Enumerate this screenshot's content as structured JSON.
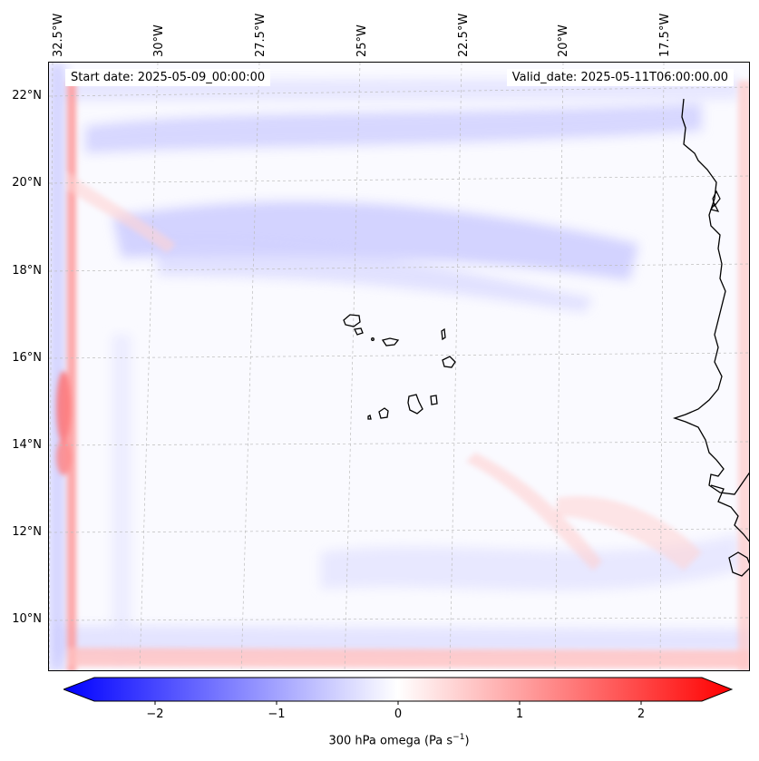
{
  "header": {
    "start_date": "Start date: 2025-05-09_00:00:00",
    "valid_date": "Valid_date: 2025-05-11T06:00:00.00"
  },
  "axes": {
    "lon_ticks": [
      "32.5°W",
      "30°W",
      "27.5°W",
      "25°W",
      "22.5°W",
      "20°W",
      "17.5°W"
    ],
    "lat_ticks": [
      "22°N",
      "20°N",
      "18°N",
      "16°N",
      "14°N",
      "12°N",
      "10°N"
    ]
  },
  "colorbar": {
    "tick_labels": [
      "−2",
      "−1",
      "0",
      "1",
      "2"
    ],
    "tick_values": [
      -2,
      -1,
      0,
      1,
      2
    ],
    "range": [
      -2.5,
      2.5
    ],
    "label_prefix": "300 hPa omega (Pa s",
    "label_exp": "−1",
    "label_suffix": ")"
  },
  "map": {
    "variable": "300 hPa omega",
    "region": "Cape Verde / West Africa coast"
  },
  "colors": {
    "negative": "#0000ff",
    "zero": "#ffffff",
    "positive": "#ff0000"
  }
}
